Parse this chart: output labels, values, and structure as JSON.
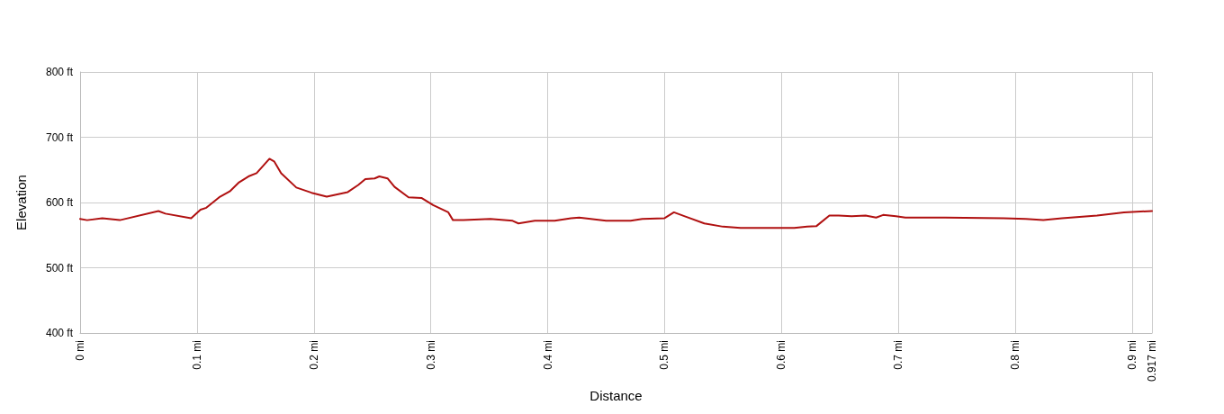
{
  "chart_data": {
    "type": "line",
    "xlabel": "Distance",
    "ylabel": "Elevation",
    "x": [
      0,
      0.006,
      0.019,
      0.034,
      0.067,
      0.073,
      0.095,
      0.103,
      0.108,
      0.119,
      0.128,
      0.136,
      0.144,
      0.151,
      0.162,
      0.166,
      0.172,
      0.185,
      0.198,
      0.211,
      0.229,
      0.238,
      0.244,
      0.252,
      0.256,
      0.263,
      0.269,
      0.281,
      0.292,
      0.302,
      0.315,
      0.319,
      0.328,
      0.351,
      0.37,
      0.375,
      0.389,
      0.406,
      0.42,
      0.427,
      0.45,
      0.471,
      0.481,
      0.5,
      0.508,
      0.534,
      0.55,
      0.565,
      0.595,
      0.611,
      0.622,
      0.63,
      0.641,
      0.649,
      0.66,
      0.672,
      0.681,
      0.687,
      0.698,
      0.706,
      0.74,
      0.79,
      0.809,
      0.824,
      0.84,
      0.87,
      0.893,
      0.917
    ],
    "series": [
      {
        "color": "#b01010",
        "values": [
          575,
          573,
          576,
          573,
          587,
          583,
          576,
          589,
          592,
          608,
          617,
          631,
          640,
          645,
          667,
          663,
          645,
          623,
          615,
          609,
          616,
          627,
          636,
          637,
          640,
          637,
          624,
          608,
          607,
          596,
          585,
          573,
          573,
          575,
          572,
          568,
          572,
          572,
          576,
          577,
          572,
          572,
          575,
          576,
          585,
          568,
          563,
          561,
          561,
          561,
          563,
          564,
          580,
          580,
          579,
          580,
          577,
          581,
          579,
          577,
          577,
          576,
          575,
          573,
          576,
          580,
          585,
          587
        ]
      }
    ],
    "xlim": [
      0,
      0.917
    ],
    "xticks": [
      {
        "value": 0,
        "label": "0 mi"
      },
      {
        "value": 0.1,
        "label": "0.1 mi"
      },
      {
        "value": 0.2,
        "label": "0.2 mi"
      },
      {
        "value": 0.3,
        "label": "0.3 mi"
      },
      {
        "value": 0.4,
        "label": "0.4 mi"
      },
      {
        "value": 0.5,
        "label": "0.5 mi"
      },
      {
        "value": 0.6,
        "label": "0.6 mi"
      },
      {
        "value": 0.7,
        "label": "0.7 mi"
      },
      {
        "value": 0.8,
        "label": "0.8 mi"
      },
      {
        "value": 0.9,
        "label": "0.9 mi"
      },
      {
        "value": 0.917,
        "label": "0.917 mi"
      }
    ],
    "ylim": [
      400,
      800
    ],
    "yticks": [
      {
        "value": 400,
        "label": "400 ft"
      },
      {
        "value": 500,
        "label": "500 ft"
      },
      {
        "value": 600,
        "label": "600 ft"
      },
      {
        "value": 700,
        "label": "700 ft"
      },
      {
        "value": 800,
        "label": "800 ft"
      }
    ],
    "grid": true,
    "marker": "none",
    "line_style": "solid"
  }
}
